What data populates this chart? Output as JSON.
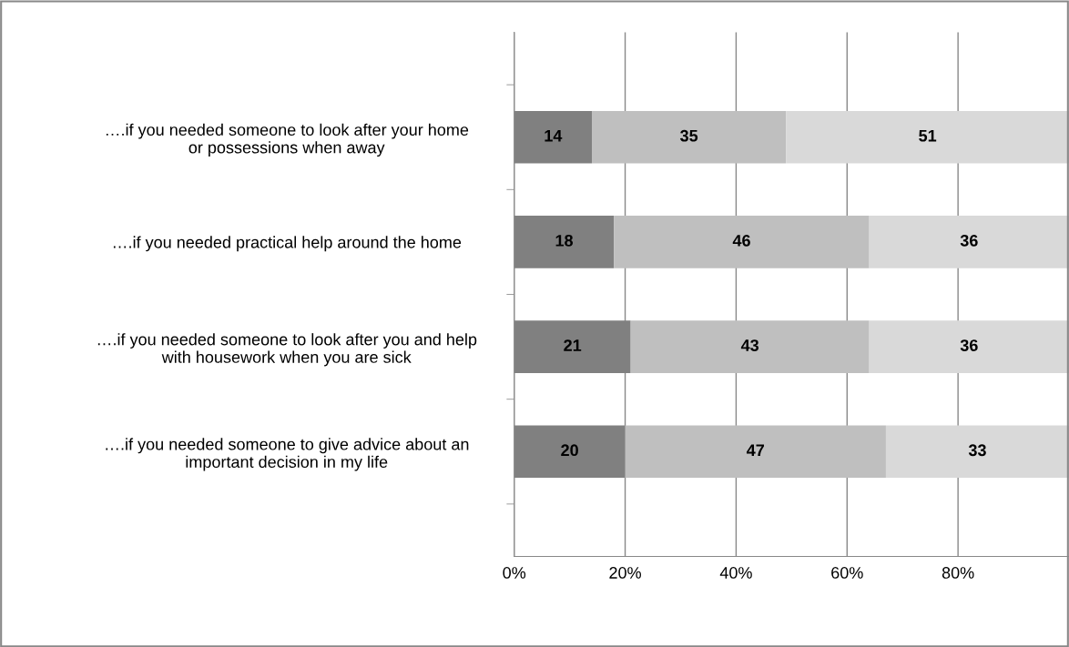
{
  "chart_data": {
    "type": "bar",
    "orientation": "horizontal",
    "stacked": true,
    "categories": [
      "….if you needed someone to look after your home\nor possessions when away",
      "….if you needed practical help around the home",
      "….if you needed someone to look after you and help\nwith housework when you are sick",
      "….if you needed someone to give advice about an\nimportant decision in my life"
    ],
    "series": [
      {
        "color": "#808080",
        "values": [
          14,
          18,
          21,
          20
        ]
      },
      {
        "color": "#bfbfbf",
        "values": [
          35,
          46,
          43,
          47
        ]
      },
      {
        "color": "#d9d9d9",
        "values": [
          51,
          36,
          36,
          33
        ]
      }
    ],
    "xlim": [
      0,
      100
    ],
    "xticks": [
      {
        "value": 0,
        "label": "0%"
      },
      {
        "value": 20,
        "label": "20%"
      },
      {
        "value": 40,
        "label": "40%"
      },
      {
        "value": 60,
        "label": "60%"
      },
      {
        "value": 80,
        "label": "80%"
      }
    ],
    "grid": "x",
    "data_labels": true
  }
}
